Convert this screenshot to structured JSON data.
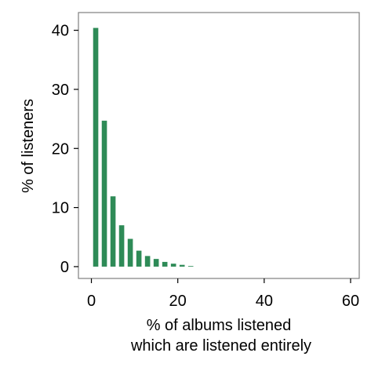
{
  "chart_data": {
    "type": "bar",
    "title": "",
    "xlabel_lines": [
      "% of albums listened",
      "which are listened entirely"
    ],
    "ylabel": "% of listeners",
    "xlim": [
      -3,
      62
    ],
    "ylim": [
      -2,
      43
    ],
    "x_ticks": [
      0,
      20,
      40,
      60
    ],
    "y_ticks": [
      0,
      10,
      20,
      30,
      40
    ],
    "bar_color": "#2e8b57",
    "grid": false,
    "bar_width": 1.2,
    "x": [
      1,
      3,
      5,
      7,
      9,
      11,
      13,
      15,
      17,
      19,
      21,
      23
    ],
    "values": [
      40.4,
      24.7,
      11.9,
      7.0,
      4.7,
      2.7,
      1.8,
      1.3,
      0.8,
      0.5,
      0.3,
      0.1
    ]
  }
}
